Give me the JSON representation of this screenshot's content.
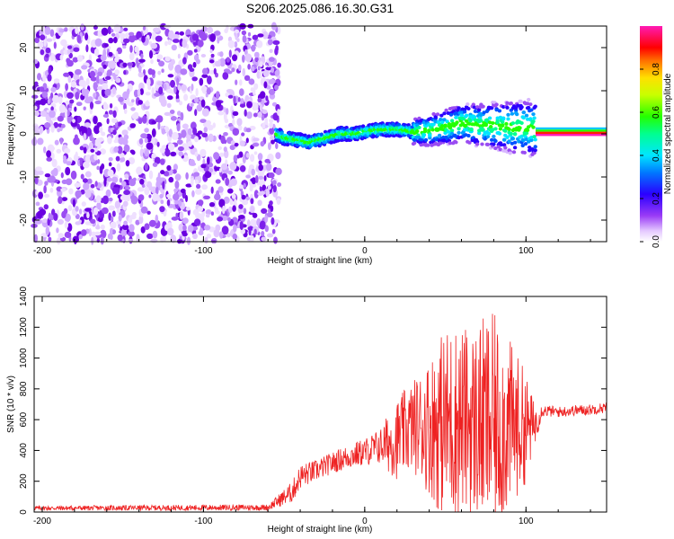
{
  "title": "S206.2025.086.16.30.G31",
  "colors": {
    "snr_line": "#ee2222",
    "axis": "#000000"
  },
  "chart_data": [
    {
      "type": "heatmap",
      "name": "spectrogram",
      "xlabel": "Height of straight line (km)",
      "ylabel": "Frequency (Hz)",
      "xlim": [
        -205,
        150
      ],
      "ylim": [
        -25,
        25
      ],
      "xticks": [
        -200,
        -100,
        0,
        100
      ],
      "yticks": [
        -20,
        -10,
        0,
        10,
        20
      ],
      "colorbar": {
        "label": "Normalized spectral amplitude",
        "range": [
          0,
          1
        ],
        "ticks": [
          "0.0",
          "0.2",
          "0.4",
          "0.6",
          "0.8"
        ]
      },
      "ridge": {
        "description_points_x": [
          -55,
          -50,
          -40,
          -35,
          -25,
          -15,
          -5,
          0,
          10,
          20,
          30,
          40,
          50,
          60,
          70,
          80,
          90,
          100,
          106
        ],
        "description_points_y": [
          0,
          -1,
          -1.5,
          -2,
          -1,
          0,
          0,
          0.5,
          1,
          1,
          0.5,
          0.8,
          1.5,
          2.5,
          2,
          2,
          1.5,
          1.5,
          1
        ]
      },
      "noise_region_x": [
        -205,
        -53
      ],
      "flat_band_x": [
        106,
        150
      ],
      "flat_band_y": [
        -0.5,
        1.5
      ]
    },
    {
      "type": "line",
      "name": "snr",
      "xlabel": "Height of straight line (km)",
      "ylabel": "SNR (10 * v/v)",
      "xlim": [
        -205,
        150
      ],
      "ylim": [
        0,
        1400
      ],
      "xticks": [
        -200,
        -100,
        0,
        100
      ],
      "yticks": [
        0,
        200,
        400,
        600,
        800,
        1000,
        1200,
        1400
      ],
      "envelope": {
        "x": [
          -205,
          -60,
          -45,
          -40,
          -30,
          -20,
          -10,
          0,
          10,
          15,
          20,
          25,
          30,
          35,
          40,
          45,
          50,
          55,
          60,
          65,
          70,
          75,
          80,
          85,
          90,
          95,
          100,
          105,
          110,
          120,
          130,
          140,
          150
        ],
        "center": [
          25,
          30,
          130,
          230,
          270,
          320,
          360,
          390,
          430,
          450,
          470,
          520,
          560,
          560,
          560,
          570,
          580,
          590,
          600,
          590,
          580,
          580,
          570,
          570,
          560,
          560,
          550,
          560,
          660,
          650,
          660,
          665,
          680
        ],
        "amplitude": [
          15,
          20,
          70,
          80,
          70,
          70,
          80,
          90,
          120,
          200,
          260,
          280,
          300,
          360,
          450,
          550,
          620,
          640,
          620,
          600,
          640,
          700,
          720,
          640,
          560,
          460,
          360,
          150,
          40,
          35,
          35,
          35,
          35
        ]
      }
    }
  ]
}
